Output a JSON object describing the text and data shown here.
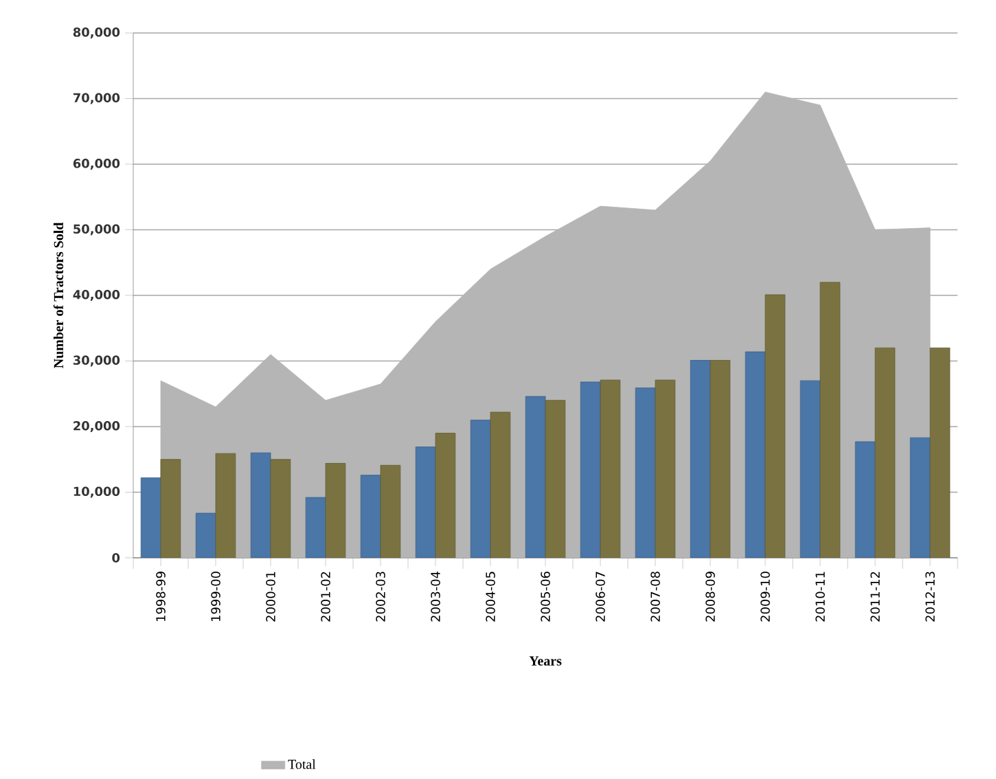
{
  "chart_data": {
    "type": "bar",
    "xlabel": "Years",
    "ylabel": "Number of Tractors Sold",
    "categories": [
      "1998-99",
      "1999-00",
      "2000-01",
      "2001-02",
      "2002-03",
      "2003-04",
      "2004-05",
      "2005-06",
      "2006-07",
      "2007-08",
      "2008-09",
      "2009-10",
      "2010-11",
      "2011-12",
      "2012-13"
    ],
    "series": [
      {
        "name": "Total",
        "type": "area",
        "color": "#b5b5b5",
        "values": [
          27000,
          23000,
          31000,
          24000,
          26500,
          36000,
          44000,
          49000,
          53600,
          53000,
          60500,
          71000,
          69000,
          50000,
          50300
        ]
      },
      {
        "color": "#4a76a8",
        "values": [
          12200,
          6800,
          16000,
          9200,
          12600,
          16900,
          21000,
          24600,
          26800,
          25900,
          30100,
          31400,
          27000,
          17700,
          18300
        ]
      },
      {
        "color": "#7a7341",
        "values": [
          15000,
          15900,
          15000,
          14400,
          14100,
          19000,
          22200,
          24000,
          27100,
          27100,
          30100,
          40100,
          42000,
          32000,
          32000
        ]
      }
    ],
    "ylim": [
      0,
      80000
    ],
    "yticks": [
      0,
      {
        "value": 10000,
        "label": "10,000"
      },
      {
        "value": 20000,
        "label": "20,000"
      },
      {
        "value": 30000,
        "label": "30,000"
      },
      {
        "value": 40000,
        "label": "40,000"
      },
      {
        "value": 50000,
        "label": "50,000"
      },
      {
        "value": 60000,
        "label": "60,000"
      },
      {
        "value": 70000,
        "label": "70,000"
      },
      {
        "value": 80000,
        "label": "80,000"
      }
    ],
    "grid": "y",
    "legend": "bottom"
  }
}
